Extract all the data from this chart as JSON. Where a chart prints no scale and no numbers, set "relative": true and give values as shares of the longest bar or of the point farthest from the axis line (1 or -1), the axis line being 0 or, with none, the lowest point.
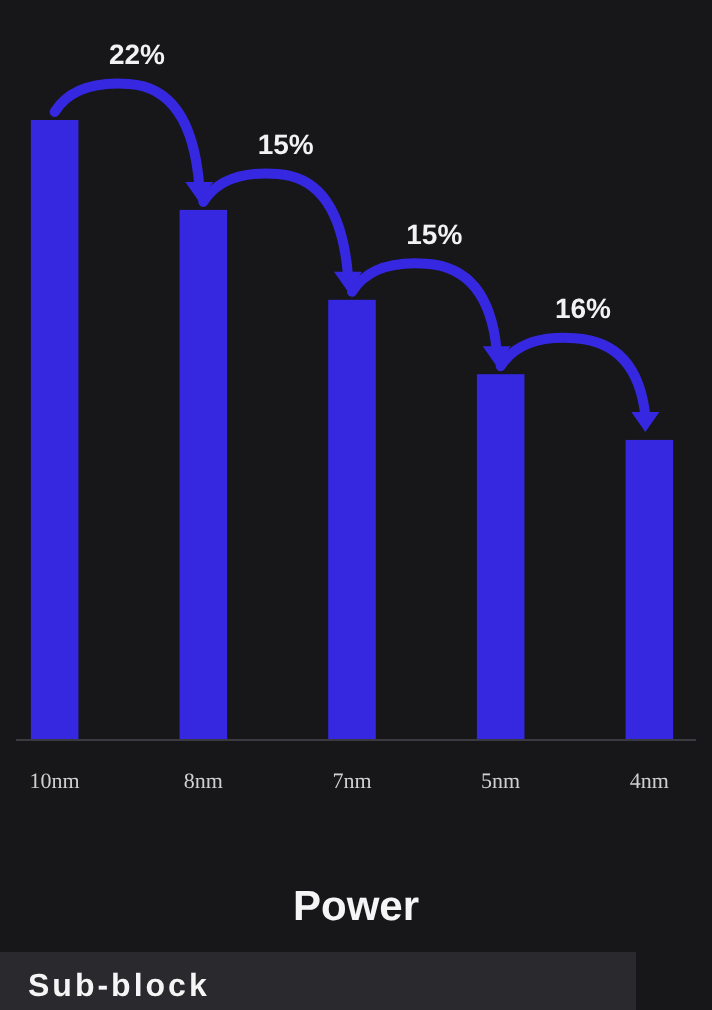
{
  "chart_data": {
    "type": "bar",
    "relative": true,
    "title": "Power",
    "subtitle": "Sub-block",
    "categories": [
      "10nm",
      "8nm",
      "7nm",
      "5nm",
      "4nm"
    ],
    "values": [
      1,
      0.855,
      0.71,
      0.59,
      0.484
    ],
    "color": "#3528e0",
    "annotations": [
      "22%",
      "15%",
      "15%",
      "16%"
    ]
  }
}
